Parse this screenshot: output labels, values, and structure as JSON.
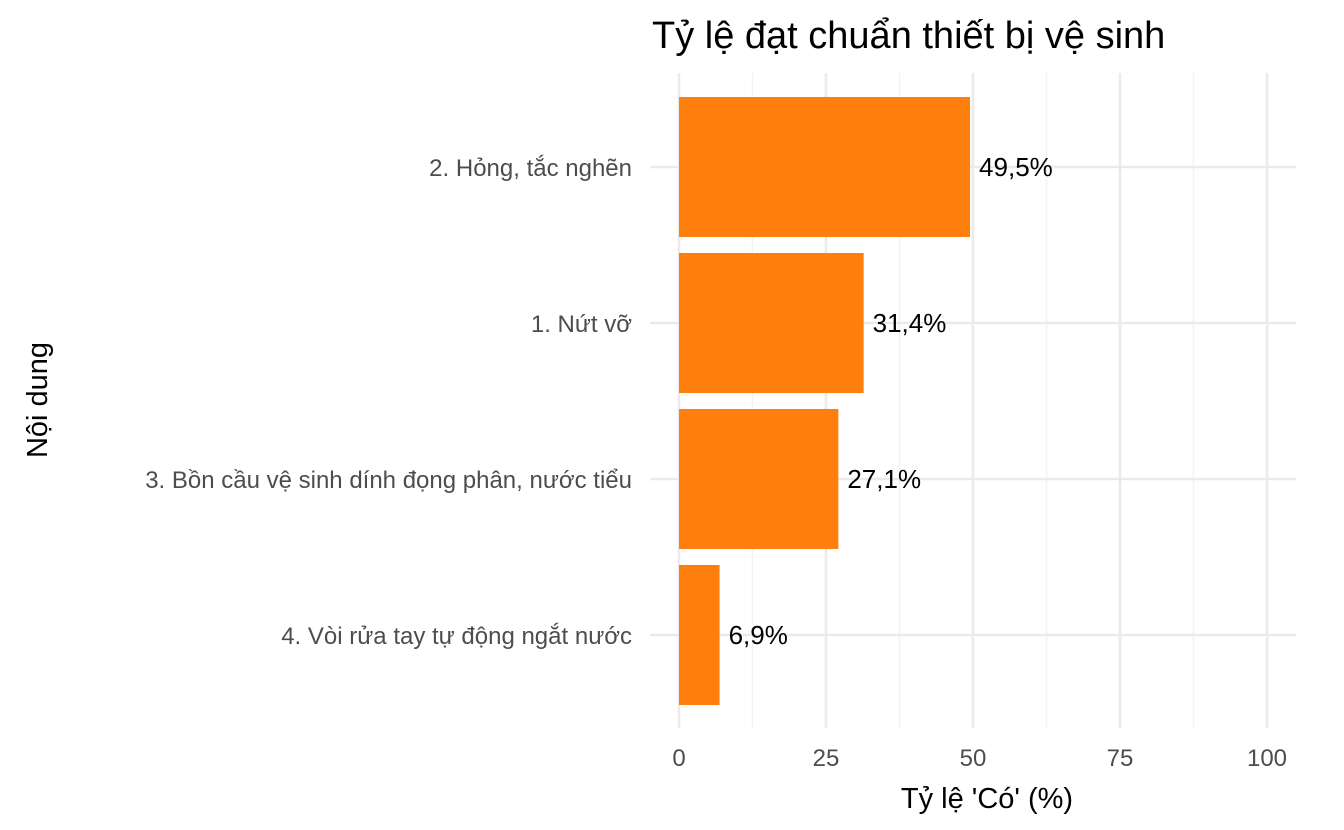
{
  "chart_data": {
    "type": "bar",
    "orientation": "horizontal",
    "title": "Tỷ lệ đạt chuẩn thiết bị vệ sinh",
    "xlabel": "Tỷ lệ 'Có' (%)",
    "ylabel": "Nội dung",
    "categories": [
      "2. Hỏng, tắc nghẽn",
      "1. Nứt vỡ",
      "3. Bồn cầu vệ sinh dính đọng phân, nước tiểu",
      "4. Vòi rửa tay tự động ngắt nước"
    ],
    "values": [
      49.5,
      31.4,
      27.1,
      6.9
    ],
    "data_labels": [
      "49,5%",
      "31,4%",
      "27,1%",
      "6,9%"
    ],
    "xlim": [
      0,
      100
    ],
    "xticks": [
      0,
      25,
      50,
      75,
      100
    ],
    "xtick_labels": [
      "0",
      "25",
      "50",
      "75",
      "100"
    ],
    "grid": true,
    "bar_color": "#FF7F0E"
  }
}
